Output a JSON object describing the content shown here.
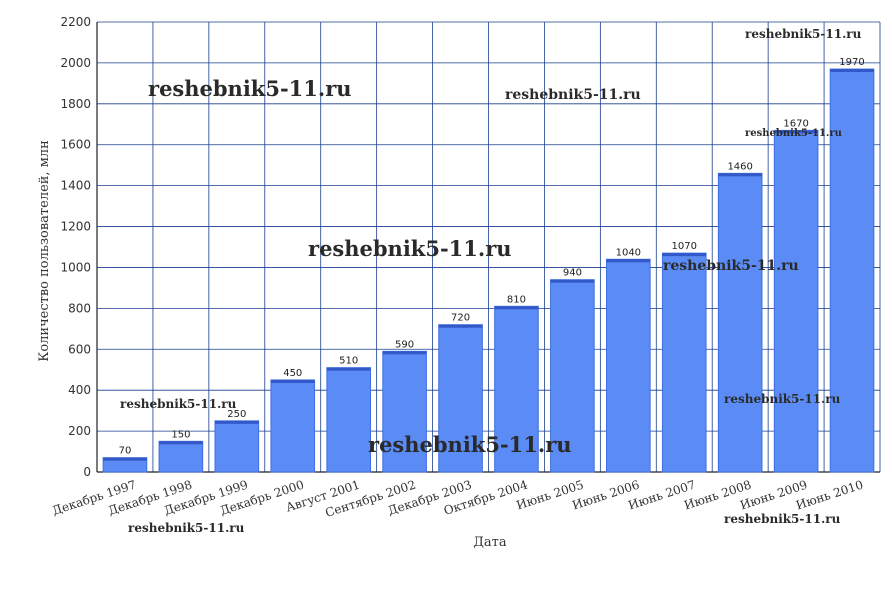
{
  "chart_data": {
    "type": "bar",
    "categories": [
      "Декабрь 1997",
      "Декабрь 1998",
      "Декабрь 1999",
      "Декабрь 2000",
      "Август 2001",
      "Сентябрь 2002",
      "Декабрь 2003",
      "Октябрь 2004",
      "Июнь 2005",
      "Июнь 2006",
      "Июнь 2007",
      "Июнь 2008",
      "Июнь 2009",
      "Июнь 2010"
    ],
    "values": [
      70,
      150,
      250,
      450,
      510,
      590,
      720,
      810,
      940,
      1040,
      1070,
      1460,
      1670,
      1970
    ],
    "data_labels": [
      "70",
      "150",
      "250",
      "450",
      "510",
      "590",
      "720",
      "810",
      "940",
      "1040",
      "1070",
      "1460",
      "1670",
      "1970"
    ],
    "xlabel": "Дата",
    "ylabel": "Количество пользователей, млн",
    "ylim": [
      0,
      2200
    ],
    "yticks": [
      "0",
      "200",
      "400",
      "600",
      "800",
      "1000",
      "1200",
      "1400",
      "1600",
      "1800",
      "2000",
      "2200"
    ],
    "grid": true,
    "bar_color": "#5b8cf5",
    "bar_edge_color": "#3f6fe0",
    "grid_color": "#1a3f8f",
    "watermark": "reshebnik5-11.ru"
  }
}
